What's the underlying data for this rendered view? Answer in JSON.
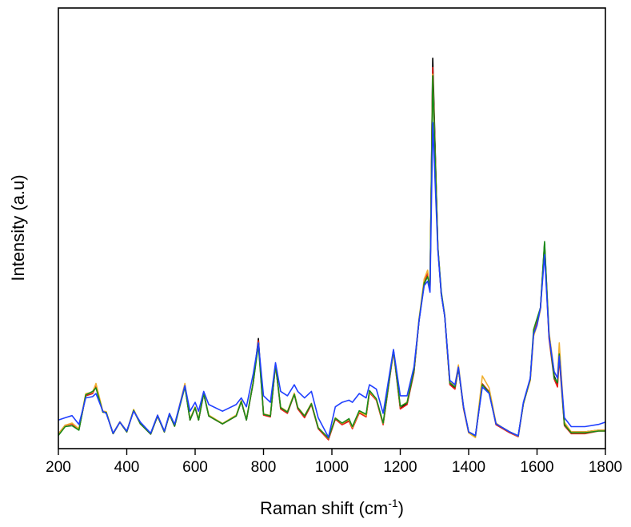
{
  "chart_data": {
    "type": "line",
    "title": "",
    "xlabel": {
      "main": "Raman shift (cm",
      "sup": "-1",
      "close": ")"
    },
    "ylabel": "Intensity (a.u)",
    "xlim": [
      200,
      1800
    ],
    "ylim": [
      0,
      100
    ],
    "y_tick_labels_shown": false,
    "grid": false,
    "legend": "none",
    "xticks": [
      "200",
      "400",
      "600",
      "800",
      "1000",
      "1200",
      "1400",
      "1600",
      "1800"
    ],
    "x": [
      200,
      220,
      240,
      260,
      280,
      300,
      310,
      330,
      340,
      360,
      380,
      400,
      420,
      440,
      470,
      490,
      510,
      525,
      540,
      570,
      585,
      600,
      610,
      625,
      640,
      680,
      720,
      735,
      750,
      770,
      785,
      800,
      820,
      835,
      850,
      870,
      890,
      900,
      920,
      940,
      960,
      990,
      1010,
      1030,
      1050,
      1060,
      1080,
      1100,
      1110,
      1130,
      1150,
      1180,
      1200,
      1220,
      1240,
      1255,
      1270,
      1280,
      1287,
      1295,
      1310,
      1320,
      1330,
      1345,
      1360,
      1370,
      1385,
      1400,
      1420,
      1440,
      1460,
      1480,
      1500,
      1520,
      1545,
      1560,
      1580,
      1590,
      1600,
      1610,
      1622,
      1635,
      1650,
      1660,
      1665,
      1680,
      1700,
      1740,
      1780,
      1800
    ],
    "series": [
      {
        "color": "#000000",
        "values": [
          3.3,
          5.3,
          5.6,
          4.4,
          12.0,
          12.5,
          14.2,
          8.3,
          8.2,
          3.4,
          6.0,
          3.8,
          8.7,
          5.6,
          3.3,
          7.4,
          3.8,
          7.8,
          5.1,
          14.3,
          6.5,
          9.3,
          6.5,
          12.5,
          7.4,
          5.6,
          7.4,
          10.7,
          6.5,
          15.1,
          25.0,
          7.8,
          7.4,
          19.1,
          9.3,
          8.3,
          12.5,
          9.3,
          7.4,
          10.2,
          4.7,
          2.4,
          6.9,
          5.6,
          6.5,
          4.7,
          8.3,
          7.4,
          12.9,
          11.1,
          5.6,
          22.3,
          9.3,
          10.2,
          17.4,
          29.2,
          37.4,
          39.2,
          36.5,
          88.6,
          45.6,
          35.0,
          30.1,
          14.7,
          13.8,
          18.3,
          9.3,
          3.8,
          2.9,
          14.7,
          12.9,
          5.6,
          4.7,
          3.8,
          2.9,
          10.2,
          15.6,
          26.0,
          28.3,
          31.9,
          46.5,
          25.6,
          16.5,
          14.7,
          22.0,
          5.6,
          3.8,
          3.8,
          4.2,
          4.2
        ]
      },
      {
        "color": "#e8201a",
        "values": [
          3.3,
          5.3,
          5.6,
          4.4,
          12.0,
          12.5,
          14.2,
          8.3,
          8.2,
          3.4,
          6.0,
          3.8,
          8.7,
          5.6,
          3.3,
          7.4,
          3.8,
          7.8,
          5.1,
          14.3,
          6.5,
          9.3,
          6.5,
          12.5,
          7.4,
          5.6,
          7.4,
          10.7,
          6.5,
          15.0,
          24.5,
          7.6,
          7.2,
          19.0,
          9.0,
          8.0,
          12.3,
          9.0,
          7.0,
          10.0,
          4.5,
          2.0,
          6.7,
          5.4,
          6.2,
          4.5,
          8.1,
          7.2,
          12.7,
          11.0,
          5.4,
          22.0,
          9.0,
          10.0,
          17.2,
          29.2,
          37.6,
          39.8,
          36.5,
          86.5,
          45.6,
          35.0,
          30.1,
          14.5,
          13.5,
          18.3,
          9.1,
          3.6,
          2.7,
          14.7,
          12.9,
          5.4,
          4.5,
          3.6,
          2.7,
          10.2,
          15.6,
          26.0,
          28.6,
          32.0,
          45.5,
          25.0,
          15.8,
          14.0,
          20.5,
          5.2,
          3.4,
          3.4,
          4.0,
          4.0
        ]
      },
      {
        "color": "#f0b030",
        "values": [
          3.3,
          5.3,
          5.8,
          4.5,
          12.5,
          12.8,
          14.8,
          8.5,
          8.4,
          3.5,
          6.1,
          3.9,
          8.9,
          5.7,
          3.4,
          7.6,
          3.9,
          7.9,
          5.2,
          14.8,
          6.7,
          9.5,
          6.7,
          12.7,
          7.6,
          5.7,
          7.6,
          10.9,
          6.6,
          15.3,
          24.0,
          7.9,
          7.5,
          19.0,
          9.4,
          8.4,
          12.6,
          9.4,
          7.5,
          10.3,
          4.8,
          2.3,
          7.0,
          5.7,
          6.6,
          4.8,
          8.4,
          7.5,
          13.0,
          11.2,
          5.7,
          22.2,
          9.5,
          10.6,
          17.8,
          29.5,
          38.5,
          40.5,
          36.8,
          85.0,
          45.8,
          35.2,
          30.3,
          15.0,
          14.5,
          19.0,
          9.5,
          3.6,
          2.5,
          16.5,
          13.8,
          5.8,
          4.7,
          3.8,
          2.8,
          10.2,
          15.4,
          25.5,
          28.0,
          31.5,
          46.0,
          26.5,
          17.5,
          16.0,
          24.0,
          6.0,
          3.8,
          3.8,
          4.2,
          4.2
        ]
      },
      {
        "color": "#1a8a1a",
        "values": [
          3.0,
          5.0,
          5.2,
          4.2,
          12.2,
          13.0,
          13.8,
          8.3,
          8.2,
          3.4,
          6.0,
          3.8,
          8.7,
          5.6,
          3.3,
          7.4,
          3.8,
          7.8,
          5.1,
          14.0,
          6.5,
          9.3,
          6.5,
          12.5,
          7.4,
          5.6,
          7.4,
          10.7,
          6.5,
          15.1,
          23.5,
          7.8,
          7.4,
          19.1,
          9.3,
          8.3,
          12.3,
          9.3,
          7.4,
          10.2,
          4.7,
          2.4,
          6.9,
          5.8,
          6.8,
          5.0,
          8.6,
          7.8,
          13.2,
          11.3,
          5.8,
          22.3,
          9.6,
          10.4,
          17.6,
          29.2,
          37.6,
          39.0,
          36.8,
          84.6,
          45.6,
          35.6,
          30.1,
          14.9,
          14.0,
          18.3,
          9.4,
          3.8,
          2.9,
          14.5,
          12.7,
          5.6,
          4.7,
          3.8,
          2.9,
          10.2,
          15.8,
          27.0,
          29.5,
          32.0,
          47.0,
          25.8,
          16.0,
          15.0,
          21.5,
          5.4,
          3.6,
          3.6,
          4.0,
          4.0
        ]
      },
      {
        "color": "#2040ff",
        "values": [
          6.5,
          7.0,
          7.5,
          5.5,
          11.5,
          11.8,
          12.5,
          8.5,
          8.0,
          3.5,
          6.0,
          4.0,
          8.5,
          6.0,
          3.5,
          7.6,
          4.0,
          8.0,
          5.5,
          14.3,
          8.5,
          10.5,
          8.5,
          13.0,
          10.0,
          8.5,
          10.0,
          11.5,
          9.5,
          17.0,
          24.0,
          12.0,
          10.5,
          19.5,
          13.0,
          12.0,
          14.5,
          13.0,
          11.5,
          13.0,
          7.0,
          2.6,
          9.5,
          10.5,
          11.0,
          10.5,
          12.5,
          11.5,
          14.5,
          13.5,
          8.0,
          22.5,
          12.0,
          12.0,
          18.5,
          29.0,
          37.0,
          38.0,
          35.5,
          74.0,
          45.0,
          35.0,
          30.0,
          15.5,
          14.5,
          18.5,
          9.5,
          3.8,
          3.0,
          14.0,
          12.5,
          5.6,
          4.7,
          3.8,
          2.9,
          10.5,
          16.0,
          26.0,
          28.0,
          32.0,
          44.0,
          25.5,
          17.5,
          16.0,
          21.0,
          7.0,
          5.0,
          5.0,
          5.5,
          6.0
        ]
      }
    ]
  }
}
